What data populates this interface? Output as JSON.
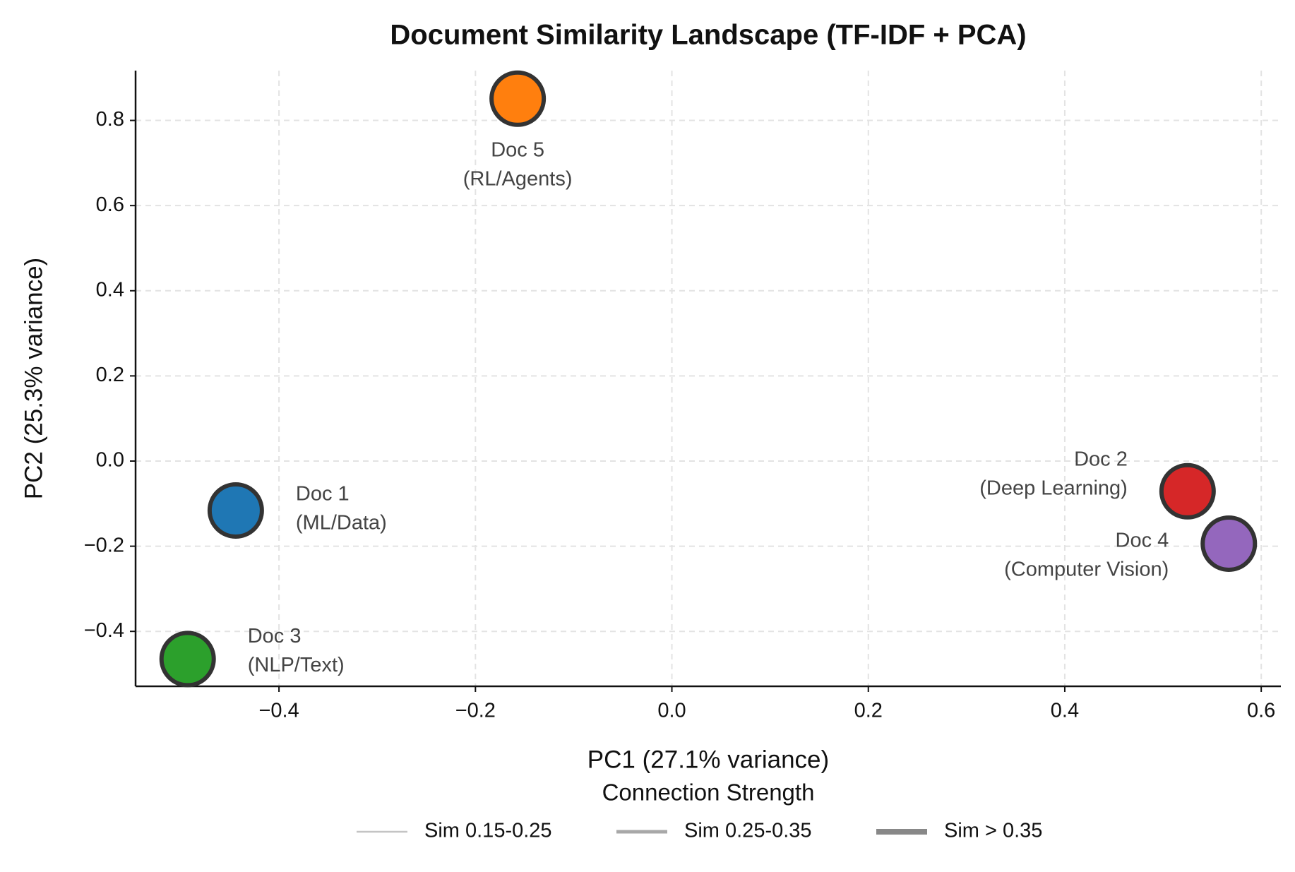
{
  "chart_data": {
    "type": "scatter",
    "title": "Document Similarity Landscape (TF-IDF + PCA)",
    "x_label": "PC1 (27.1% variance)",
    "y_label": "PC2 (25.3% variance)",
    "xlim": [
      -0.546,
      0.62
    ],
    "ylim": [
      -0.529,
      0.917
    ],
    "xticks": [
      {
        "value": -0.4,
        "label": "−0.4"
      },
      {
        "value": -0.2,
        "label": "−0.2"
      },
      {
        "value": 0,
        "label": "0.0"
      },
      0.2,
      0.4,
      0.6
    ],
    "yticks": [
      {
        "value": -0.4,
        "label": "−0.4"
      },
      {
        "value": -0.2,
        "label": "−0.2"
      },
      {
        "value": 0,
        "label": "0.0"
      },
      0.2,
      0.4,
      0.6,
      0.8
    ],
    "grid": true,
    "points": [
      {
        "name": "Doc 1",
        "topic": "(ML/Data)",
        "x": -0.444,
        "y": -0.116,
        "color": "#1f77b4"
      },
      {
        "name": "Doc 2",
        "topic": "(Deep Learning)",
        "x": 0.525,
        "y": -0.071,
        "color": "#d62728"
      },
      {
        "name": "Doc 3",
        "topic": "(NLP/Text)",
        "x": -0.493,
        "y": -0.465,
        "color": "#2ca02c"
      },
      {
        "name": "Doc 4",
        "topic": "(Computer Vision)",
        "x": 0.567,
        "y": -0.194,
        "color": "#9467bd"
      },
      {
        "name": "Doc 5",
        "topic": "(RL/Agents)",
        "x": -0.157,
        "y": 0.851,
        "color": "#ff7f0e"
      }
    ],
    "legend": {
      "title": "Connection Strength",
      "items": [
        {
          "name": "Sim 0.15-0.25",
          "color": "#c4c4c4"
        },
        {
          "name": "Sim 0.25-0.35",
          "color": "#a8a8a8"
        },
        {
          "name": "Sim > 0.35",
          "color": "#888888"
        }
      ]
    }
  }
}
